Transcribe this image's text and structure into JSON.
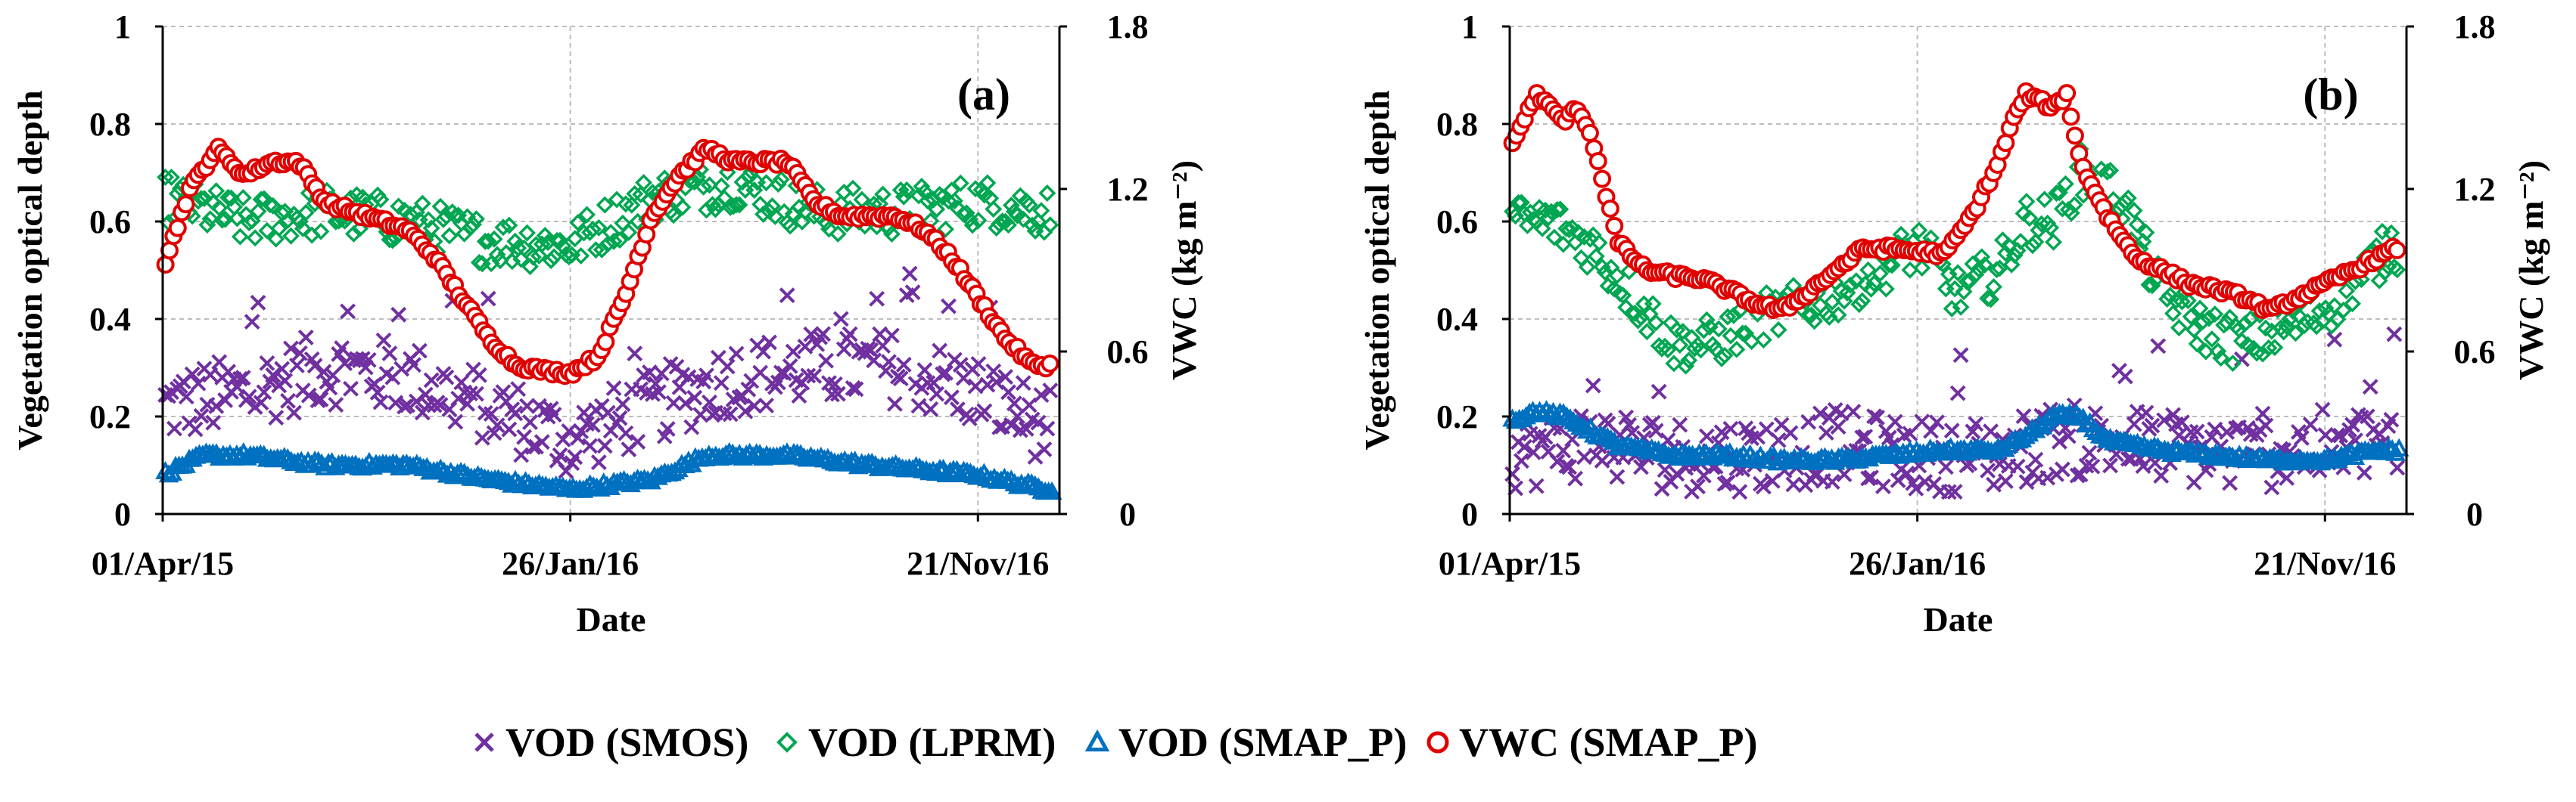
{
  "chart_data": [
    {
      "panel": "(a)",
      "type": "scatter",
      "xlabel": "Date",
      "ylabel": "Vegetation optical depth",
      "y2label": "VWC (kg m⁻²)",
      "ylim": [
        0,
        1
      ],
      "y2lim": [
        0,
        1.8
      ],
      "yticks": [
        "0",
        "0.2",
        "0.4",
        "0.6",
        "0.8",
        "1"
      ],
      "y2ticks": [
        "0",
        "0.6",
        "1.2",
        "1.8"
      ],
      "xticks": [
        "01/Apr/15",
        "26/Jan/16",
        "21/Nov/16"
      ],
      "x_unit": "days since 01/Apr/15",
      "xlim": [
        0,
        660
      ],
      "grid": true,
      "series": [
        {
          "name": "VOD (SMOS)",
          "axis": "left",
          "marker": "cross",
          "color": "#7030a0",
          "x": [
            0,
            60,
            120,
            180,
            240,
            300,
            360,
            420,
            480,
            540,
            600,
            650
          ],
          "y": [
            0.22,
            0.25,
            0.3,
            0.28,
            0.22,
            0.15,
            0.22,
            0.28,
            0.3,
            0.3,
            0.25,
            0.18
          ]
        },
        {
          "name": "VOD (LPRM)",
          "axis": "left",
          "marker": "diamond",
          "color": "#00a651",
          "x": [
            0,
            60,
            120,
            180,
            240,
            300,
            360,
            420,
            480,
            540,
            600,
            650
          ],
          "y": [
            0.65,
            0.6,
            0.62,
            0.6,
            0.56,
            0.55,
            0.65,
            0.68,
            0.62,
            0.62,
            0.64,
            0.62
          ]
        },
        {
          "name": "VOD (SMAP_P)",
          "axis": "left",
          "marker": "triangle",
          "color": "#0070c0",
          "x": [
            0,
            30,
            60,
            120,
            180,
            240,
            300,
            360,
            400,
            460,
            520,
            600,
            650
          ],
          "y": [
            0.08,
            0.12,
            0.12,
            0.1,
            0.1,
            0.07,
            0.05,
            0.07,
            0.12,
            0.12,
            0.1,
            0.08,
            0.05
          ]
        },
        {
          "name": "VWC (SMAP_P)",
          "axis": "right",
          "marker": "circle",
          "color": "#e00000",
          "x": [
            0,
            10,
            20,
            40,
            60,
            80,
            100,
            120,
            150,
            180,
            200,
            220,
            240,
            260,
            280,
            300,
            320,
            340,
            360,
            380,
            400,
            420,
            440,
            460,
            480,
            500,
            520,
            540,
            560,
            580,
            600,
            620,
            640,
            660
          ],
          "y": [
            0.9,
            1.05,
            1.2,
            1.35,
            1.25,
            1.3,
            1.3,
            1.15,
            1.1,
            1.05,
            0.95,
            0.8,
            0.65,
            0.55,
            0.53,
            0.52,
            0.58,
            0.8,
            1.1,
            1.25,
            1.35,
            1.3,
            1.3,
            1.3,
            1.15,
            1.1,
            1.1,
            1.1,
            1.05,
            0.95,
            0.8,
            0.65,
            0.55,
            0.55
          ]
        }
      ]
    },
    {
      "panel": "(b)",
      "type": "scatter",
      "xlabel": "Date",
      "ylabel": "Vegetation optical depth",
      "y2label": "VWC (kg m⁻²)",
      "ylim": [
        0,
        1
      ],
      "y2lim": [
        0,
        1.8
      ],
      "yticks": [
        "0",
        "0.2",
        "0.4",
        "0.6",
        "0.8",
        "1"
      ],
      "y2ticks": [
        "0",
        "0.6",
        "1.2",
        "1.8"
      ],
      "xticks": [
        "01/Apr/15",
        "26/Jan/16",
        "21/Nov/16"
      ],
      "x_unit": "days since 01/Apr/15",
      "xlim": [
        0,
        660
      ],
      "grid": true,
      "series": [
        {
          "name": "VOD (SMOS)",
          "axis": "left",
          "marker": "cross",
          "color": "#7030a0",
          "x": [
            0,
            60,
            120,
            180,
            240,
            300,
            360,
            400,
            420,
            480,
            540,
            600,
            650
          ],
          "y": [
            0.12,
            0.15,
            0.12,
            0.12,
            0.14,
            0.12,
            0.12,
            0.15,
            0.15,
            0.14,
            0.12,
            0.14,
            0.15
          ]
        },
        {
          "name": "VOD (LPRM)",
          "axis": "left",
          "marker": "diamond",
          "color": "#00a651",
          "x": [
            0,
            30,
            60,
            90,
            120,
            150,
            180,
            210,
            240,
            270,
            300,
            330,
            360,
            380,
            400,
            420,
            450,
            480,
            510,
            540,
            570,
            600,
            630,
            650
          ],
          "y": [
            0.6,
            0.6,
            0.55,
            0.45,
            0.35,
            0.35,
            0.4,
            0.42,
            0.45,
            0.5,
            0.55,
            0.45,
            0.5,
            0.6,
            0.6,
            0.7,
            0.65,
            0.45,
            0.38,
            0.35,
            0.38,
            0.42,
            0.5,
            0.55
          ]
        },
        {
          "name": "VOD (SMAP_P)",
          "axis": "left",
          "marker": "triangle",
          "color": "#0070c0",
          "x": [
            0,
            20,
            40,
            80,
            120,
            160,
            200,
            240,
            280,
            320,
            340,
            360,
            380,
            400,
            420,
            440,
            480,
            520,
            560,
            600,
            640,
            660
          ],
          "y": [
            0.19,
            0.21,
            0.2,
            0.14,
            0.12,
            0.12,
            0.11,
            0.11,
            0.12,
            0.13,
            0.13,
            0.13,
            0.16,
            0.2,
            0.2,
            0.15,
            0.13,
            0.12,
            0.11,
            0.11,
            0.13,
            0.13
          ]
        },
        {
          "name": "VWC (SMAP_P)",
          "axis": "right",
          "marker": "circle",
          "color": "#e00000",
          "x": [
            0,
            10,
            20,
            40,
            50,
            60,
            80,
            100,
            120,
            140,
            160,
            180,
            200,
            220,
            240,
            260,
            280,
            300,
            320,
            340,
            360,
            370,
            380,
            400,
            410,
            420,
            440,
            460,
            480,
            500,
            520,
            540,
            560,
            580,
            600,
            620,
            640,
            660
          ],
          "y": [
            1.35,
            1.45,
            1.55,
            1.45,
            1.5,
            1.4,
            1.0,
            0.9,
            0.88,
            0.87,
            0.83,
            0.78,
            0.75,
            0.82,
            0.9,
            0.98,
            0.98,
            0.97,
            0.96,
            1.1,
            1.3,
            1.45,
            1.55,
            1.5,
            1.55,
            1.3,
            1.1,
            0.95,
            0.9,
            0.85,
            0.83,
            0.8,
            0.75,
            0.8,
            0.85,
            0.9,
            0.95,
            1.0
          ]
        }
      ]
    }
  ],
  "legend": [
    {
      "label": "VOD (SMOS)",
      "marker": "cross",
      "color": "#7030a0"
    },
    {
      "label": "VOD (LPRM)",
      "marker": "diamond",
      "color": "#00a651"
    },
    {
      "label": "VOD (SMAP_P)",
      "marker": "triangle",
      "color": "#0070c0"
    },
    {
      "label": "VWC (SMAP_P)",
      "marker": "circle",
      "color": "#e00000"
    }
  ]
}
